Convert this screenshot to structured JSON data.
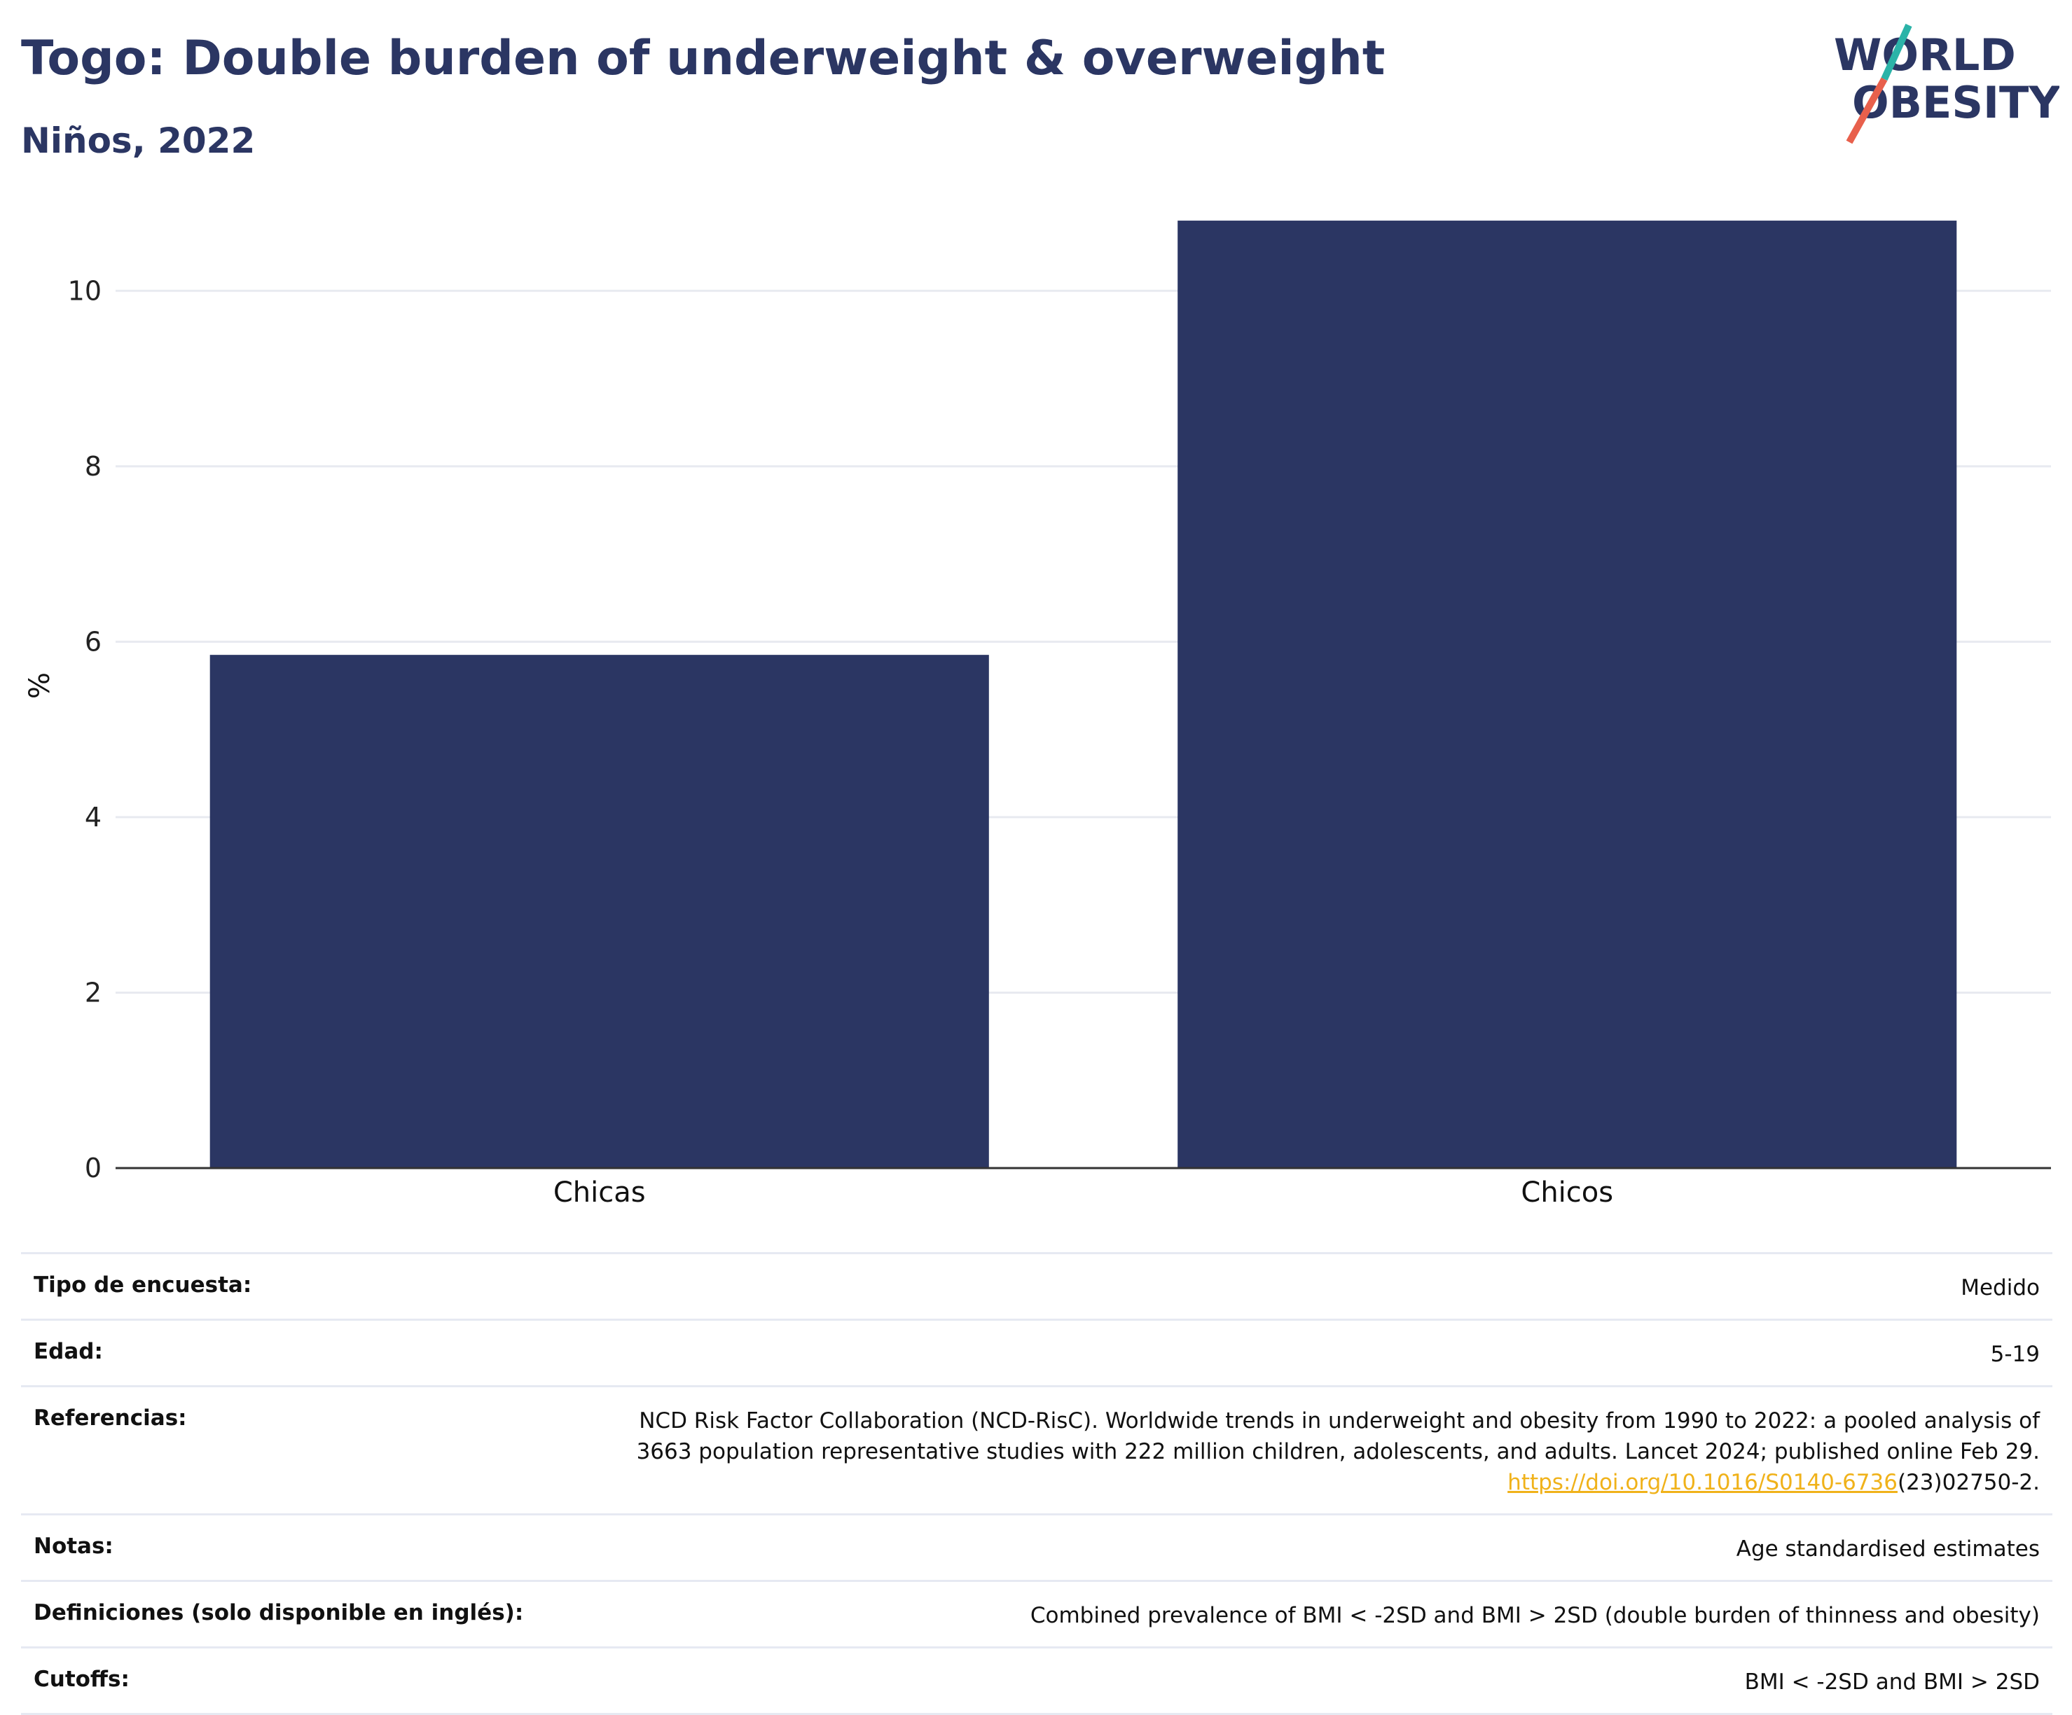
{
  "header": {
    "title": "Togo: Double burden of underweight & overweight",
    "subtitle": "Niños, 2022"
  },
  "logo": {
    "line1": "WORLD",
    "line2": "OBESITY",
    "name": "world-obesity-logo"
  },
  "colors": {
    "bar": "#2b3663",
    "text": "#2b3663",
    "grid": "#e8eaf0",
    "link": "#f0b21a",
    "logo_teal": "#2bb3a8",
    "logo_red": "#e8604c"
  },
  "chart_data": {
    "type": "bar",
    "categories": [
      "Chicas",
      "Chicos"
    ],
    "values": [
      5.85,
      10.8
    ],
    "ylabel": "%",
    "ylim": [
      0,
      11
    ],
    "yticks": [
      0,
      2,
      4,
      6,
      8,
      10
    ],
    "grid": true
  },
  "info": {
    "rows": [
      {
        "label": "Tipo de encuesta:",
        "value": "Medido"
      },
      {
        "label": "Edad:",
        "value": "5-19"
      },
      {
        "label": "Referencias:",
        "value_line1": "NCD Risk Factor Collaboration (NCD-RisC). Worldwide trends in underweight and obesity from 1990 to 2022: a pooled analysis of",
        "value_line2": "3663 population representative studies with 222 million children, adolescents, and adults. Lancet 2024; published online Feb 29.",
        "link_text": "https://doi.org/10.1016/S0140-6736",
        "value_tail": "(23)02750-2."
      },
      {
        "label": "Notas:",
        "value": "Age standardised estimates"
      },
      {
        "label": "Definiciones (solo disponible en inglés):",
        "value": "Combined prevalence of BMI < -2SD and BMI > 2SD (double burden of thinness and obesity)"
      },
      {
        "label": "Cutoffs:",
        "value": "BMI < -2SD and BMI > 2SD"
      }
    ]
  }
}
